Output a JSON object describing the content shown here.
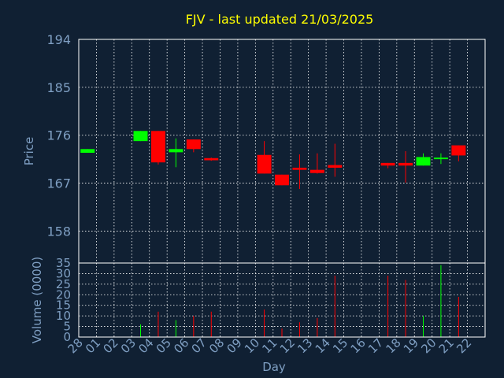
{
  "title": "FJV - last updated 21/03/2025",
  "colors": {
    "background": "#102033",
    "title": "#ffff00",
    "axis_text": "#7f9fc3",
    "frame": "#ffffff",
    "grid": "#ffffff",
    "up": "#00ff00",
    "down": "#ff0000"
  },
  "chart_data": [
    {
      "type": "candlestick",
      "ylabel": "Price",
      "ylim": [
        152,
        194
      ],
      "yticks": [
        158,
        167,
        176,
        185,
        194
      ],
      "grid": true,
      "days": [
        "28",
        "01",
        "02",
        "03",
        "04",
        "05",
        "06",
        "07",
        "08",
        "09",
        "10",
        "11",
        "12",
        "13",
        "14",
        "15",
        "16",
        "17",
        "18",
        "19",
        "20",
        "21",
        "22"
      ],
      "candles": [
        {
          "day": "28",
          "open": 172.7,
          "close": 173.4,
          "high": 173.4,
          "low": 172.7
        },
        {
          "day": "03",
          "open": 174.9,
          "close": 176.8,
          "high": 176.8,
          "low": 174.9
        },
        {
          "day": "04",
          "open": 176.8,
          "close": 170.9,
          "high": 176.8,
          "low": 170.5
        },
        {
          "day": "05",
          "open": 172.8,
          "close": 173.4,
          "high": 175.4,
          "low": 170.0
        },
        {
          "day": "06",
          "open": 175.2,
          "close": 173.4,
          "high": 175.2,
          "low": 172.8
        },
        {
          "day": "07",
          "open": 171.7,
          "close": 171.3,
          "high": 171.8,
          "low": 171.2
        },
        {
          "day": "10",
          "open": 172.3,
          "close": 168.8,
          "high": 174.9,
          "low": 168.8
        },
        {
          "day": "11",
          "open": 168.6,
          "close": 166.6,
          "high": 168.6,
          "low": 166.6
        },
        {
          "day": "12",
          "open": 169.9,
          "close": 169.5,
          "high": 172.4,
          "low": 165.9
        },
        {
          "day": "13",
          "open": 169.5,
          "close": 168.9,
          "high": 172.6,
          "low": 168.8
        },
        {
          "day": "14",
          "open": 170.4,
          "close": 169.9,
          "high": 174.4,
          "low": 168.2
        },
        {
          "day": "17",
          "open": 170.8,
          "close": 170.3,
          "high": 170.8,
          "low": 169.8
        },
        {
          "day": "18",
          "open": 170.8,
          "close": 170.3,
          "high": 173.0,
          "low": 167.1
        },
        {
          "day": "19",
          "open": 170.3,
          "close": 171.9,
          "high": 172.6,
          "low": 170.3
        },
        {
          "day": "20",
          "open": 171.6,
          "close": 171.8,
          "high": 172.6,
          "low": 170.6
        },
        {
          "day": "21",
          "open": 174.1,
          "close": 172.2,
          "high": 174.1,
          "low": 171.1
        }
      ]
    },
    {
      "type": "bar",
      "ylabel": "Volume (0000)",
      "xlabel": "Day",
      "ylim": [
        0,
        35
      ],
      "yticks": [
        0,
        5,
        10,
        15,
        20,
        25,
        30,
        35
      ],
      "grid": true,
      "categories": [
        "03",
        "04",
        "05",
        "06",
        "07",
        "10",
        "11",
        "12",
        "13",
        "14",
        "17",
        "18",
        "19",
        "20",
        "21"
      ],
      "values": [
        6,
        12,
        8,
        10,
        12,
        13,
        4,
        7,
        9,
        29,
        29,
        27,
        10,
        34,
        19
      ],
      "bar_colors": [
        "up",
        "down",
        "up",
        "down",
        "down",
        "down",
        "down",
        "down",
        "down",
        "down",
        "down",
        "down",
        "up",
        "up",
        "down"
      ]
    }
  ]
}
